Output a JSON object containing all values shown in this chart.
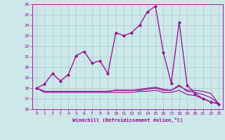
{
  "xlabel": "Windchill (Refroidissement éolien,°C)",
  "xlim": [
    -0.5,
    23.5
  ],
  "ylim": [
    16,
    26
  ],
  "yticks": [
    16,
    17,
    18,
    19,
    20,
    21,
    22,
    23,
    24,
    25,
    26
  ],
  "xticks": [
    0,
    1,
    2,
    3,
    4,
    5,
    6,
    7,
    8,
    9,
    10,
    11,
    12,
    13,
    14,
    15,
    16,
    17,
    18,
    19,
    20,
    21,
    22,
    23
  ],
  "bg_color": "#cce8e8",
  "line_color": "#990099",
  "grid_color": "#aacccc",
  "line1_x": [
    0,
    1,
    2,
    3,
    4,
    5,
    6,
    7,
    8,
    9,
    10,
    11,
    12,
    13,
    14,
    15,
    16,
    17,
    18,
    19,
    20,
    21,
    22,
    23
  ],
  "line1_y": [
    18.0,
    18.4,
    19.4,
    18.7,
    19.3,
    21.1,
    21.5,
    20.4,
    20.6,
    19.4,
    23.3,
    23.0,
    23.3,
    24.0,
    25.3,
    25.8,
    21.4,
    18.5,
    24.3,
    18.3,
    17.5,
    17.0,
    16.7,
    16.5
  ],
  "line2_x": [
    0,
    1,
    2,
    3,
    4,
    5,
    6,
    7,
    8,
    9,
    10,
    11,
    12,
    13,
    14,
    15,
    16,
    17,
    18,
    19,
    20,
    21,
    22,
    23
  ],
  "line2_y": [
    18.0,
    17.7,
    17.7,
    17.7,
    17.7,
    17.7,
    17.7,
    17.7,
    17.7,
    17.7,
    17.8,
    17.8,
    17.8,
    17.8,
    17.9,
    18.0,
    17.8,
    17.8,
    18.2,
    17.8,
    17.8,
    17.7,
    17.5,
    16.5
  ],
  "line3_x": [
    0,
    1,
    2,
    3,
    4,
    5,
    6,
    7,
    8,
    9,
    10,
    11,
    12,
    13,
    14,
    15,
    16,
    17,
    18,
    19,
    20,
    21,
    22,
    23
  ],
  "line3_y": [
    18.0,
    17.6,
    17.6,
    17.6,
    17.6,
    17.6,
    17.6,
    17.6,
    17.6,
    17.6,
    17.6,
    17.6,
    17.6,
    17.7,
    17.7,
    17.8,
    17.6,
    17.6,
    17.8,
    17.4,
    17.3,
    17.0,
    16.7,
    16.5
  ],
  "line4_x": [
    0,
    1,
    2,
    3,
    4,
    5,
    6,
    7,
    8,
    9,
    10,
    11,
    12,
    13,
    14,
    15,
    16,
    17,
    18,
    19,
    20,
    21,
    22,
    23
  ],
  "line4_y": [
    18.0,
    17.7,
    17.7,
    17.7,
    17.7,
    17.7,
    17.7,
    17.7,
    17.7,
    17.7,
    17.8,
    17.8,
    17.8,
    17.9,
    18.0,
    18.1,
    17.9,
    17.8,
    18.3,
    17.7,
    17.6,
    17.4,
    17.1,
    16.5
  ]
}
